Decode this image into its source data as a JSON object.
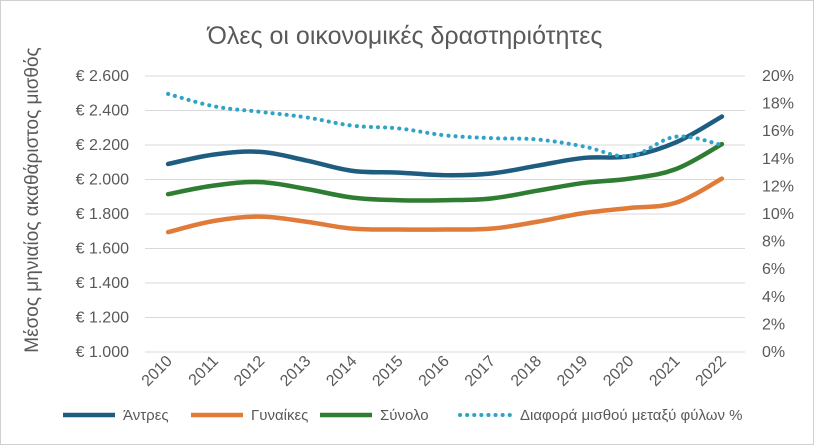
{
  "chart_data": {
    "type": "line",
    "title": "Όλες οι οικονομικές δραστηριότητες",
    "ylabel": "Μέσος μηνιαίος ακαθάριστος μισθός",
    "xlabel": "",
    "categories": [
      "2010",
      "2011",
      "2012",
      "2013",
      "2014",
      "2015",
      "2016",
      "2017",
      "2018",
      "2019",
      "2020",
      "2021",
      "2022"
    ],
    "y_left": {
      "min": 1000,
      "max": 2600,
      "step": 200,
      "tick_labels": [
        "€ 1.000",
        "€ 1.200",
        "€ 1.400",
        "€ 1.600",
        "€ 1.800",
        "€ 2.000",
        "€ 2.200",
        "€ 2.400",
        "€ 2.600"
      ]
    },
    "y_right": {
      "min": 0,
      "max": 20,
      "step": 2,
      "tick_labels": [
        "0%",
        "2%",
        "4%",
        "6%",
        "8%",
        "10%",
        "12%",
        "14%",
        "16%",
        "18%",
        "20%"
      ]
    },
    "grid": true,
    "legend_position": "bottom",
    "series": [
      {
        "name": "Άντρες",
        "axis": "left",
        "color": "#1f5d80",
        "style": "solid",
        "values": [
          2090,
          2145,
          2160,
          2110,
          2050,
          2040,
          2025,
          2035,
          2080,
          2125,
          2135,
          2215,
          2365
        ]
      },
      {
        "name": "Γυναίκες",
        "axis": "left",
        "color": "#e07b39",
        "style": "solid",
        "values": [
          1695,
          1760,
          1785,
          1755,
          1715,
          1710,
          1710,
          1715,
          1755,
          1805,
          1835,
          1865,
          2005
        ]
      },
      {
        "name": "Σύνολο",
        "axis": "left",
        "color": "#2e7d32",
        "style": "solid",
        "values": [
          1915,
          1965,
          1985,
          1945,
          1895,
          1880,
          1880,
          1890,
          1935,
          1980,
          2005,
          2060,
          2205
        ]
      },
      {
        "name": "Διαφορά μισθού μεταξύ φύλων %",
        "axis": "right",
        "color": "#2ea3c7",
        "style": "dotted",
        "values": [
          18.7,
          17.8,
          17.4,
          17.0,
          16.4,
          16.2,
          15.7,
          15.5,
          15.4,
          14.9,
          14.2,
          15.6,
          15.0
        ]
      }
    ]
  }
}
